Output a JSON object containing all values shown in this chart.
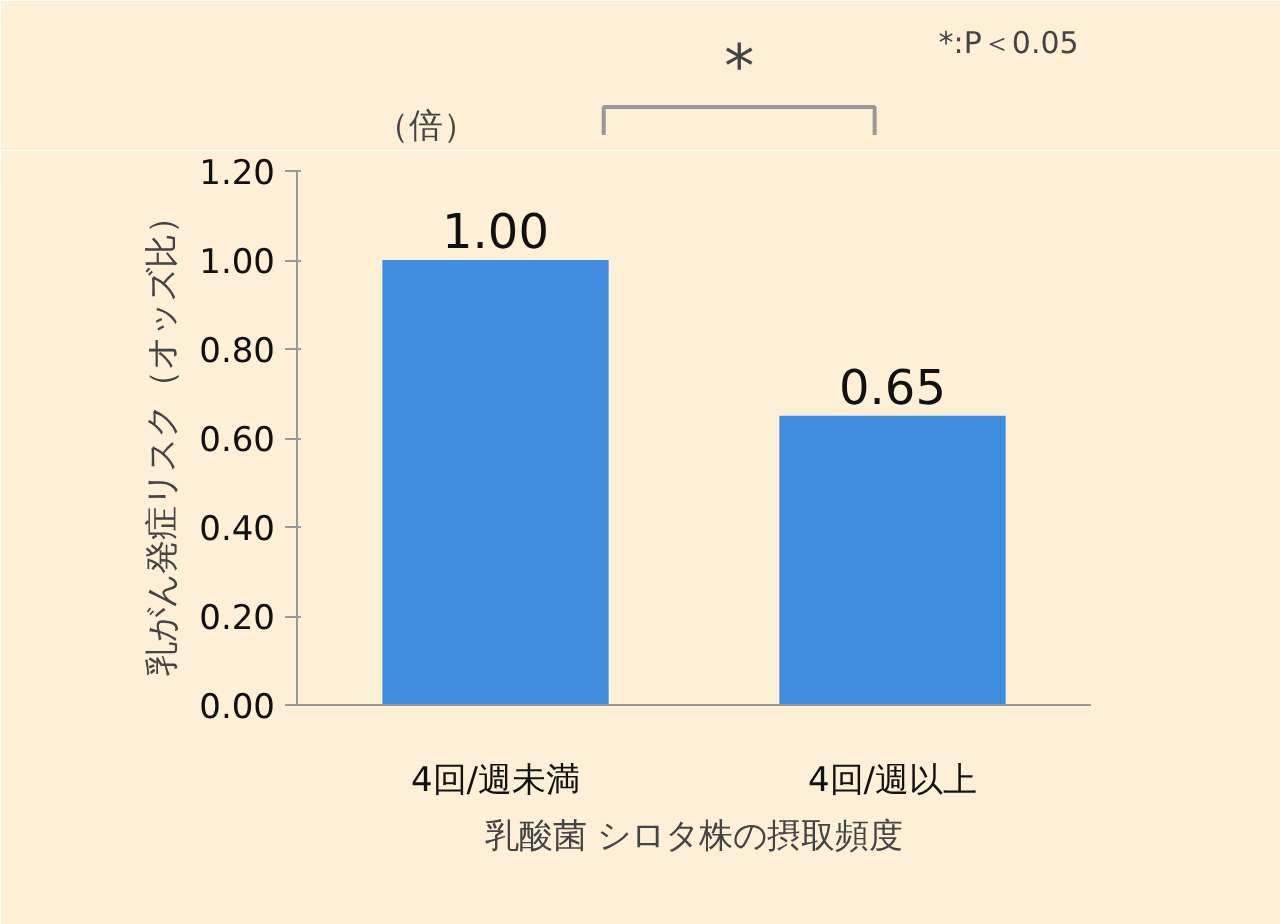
{
  "chart_data": {
    "type": "bar",
    "categories": [
      "4回/週未満",
      "4回/週以上"
    ],
    "values": [
      1.0,
      0.65
    ],
    "color": "#3f8ee0",
    "ylim": [
      0,
      1.2
    ],
    "yticks": [
      "0.00",
      "0.20",
      "0.40",
      "0.60",
      "0.80",
      "1.00",
      "1.20"
    ],
    "ylabel": "乳がん発症リスク（オッズ比）",
    "xlabel": "乳酸菌 シロタ株の摂取頻度",
    "value_labels": [
      "1.00",
      "0.65"
    ],
    "grid": false,
    "annotations": [
      "（倍）",
      "*",
      "*:P＜0.05"
    ]
  }
}
